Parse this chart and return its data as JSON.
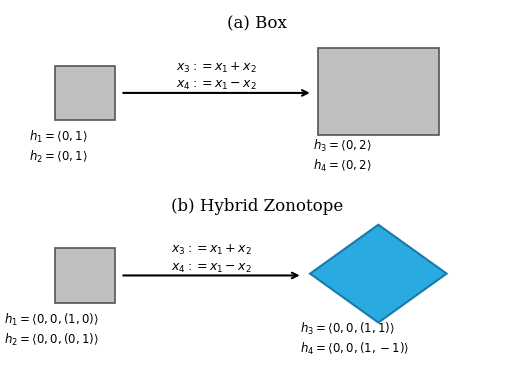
{
  "title_a": "(a) Box",
  "title_b": "(b) Hybrid Zonotope",
  "box_color": "#c0c0c0",
  "box_edge_color": "#555555",
  "diamond_color": "#29abe2",
  "diamond_edge_color": "#1a7aaa",
  "arrow_color": "black",
  "text_color": "black",
  "formula_line1": "$x_3 := x_1 + x_2$",
  "formula_line2": "$x_4 := x_1 - x_2$",
  "label_a_left_1": "$h_1 = \\langle 0, 1 \\rangle$",
  "label_a_left_2": "$h_2 = \\langle 0, 1 \\rangle$",
  "label_a_right_1": "$h_3 = \\langle 0, 2 \\rangle$",
  "label_a_right_2": "$h_4 = \\langle 0, 2 \\rangle$",
  "label_b_left_1": "$h_1 = \\langle 0, 0, (1, 0) \\rangle$",
  "label_b_left_2": "$h_2 = \\langle 0, 0, (0, 1) \\rangle$",
  "label_b_right_1": "$h_3 = \\langle 0, 0, (1, 1) \\rangle$",
  "label_b_right_2": "$h_4 = \\langle 0, 0, (1, -1) \\rangle$",
  "background_color": "#ffffff"
}
